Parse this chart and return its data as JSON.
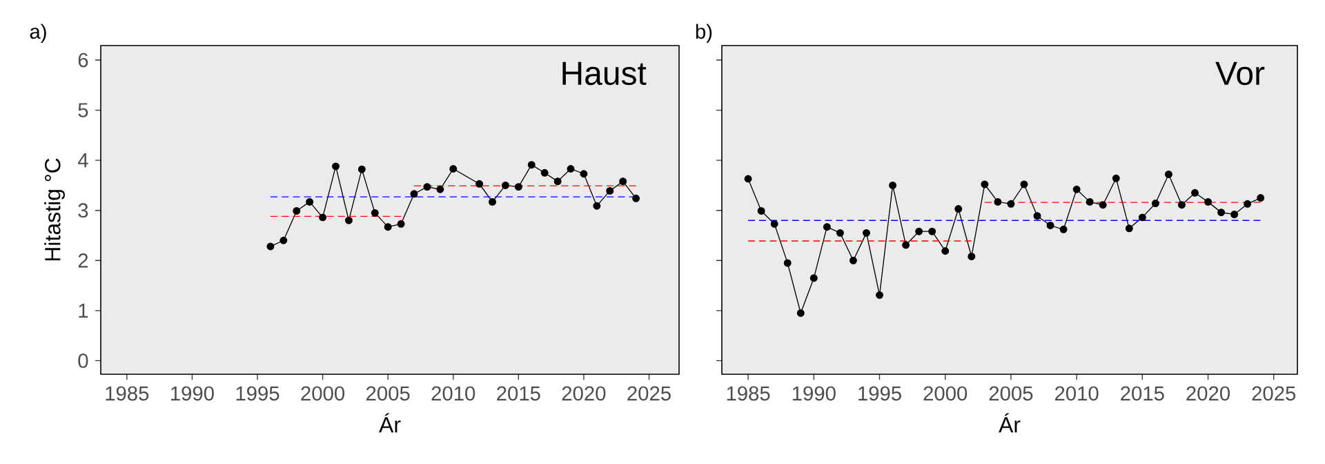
{
  "chart_data": [
    {
      "type": "line",
      "title": "Haust",
      "xlabel": "Ár",
      "ylabel": "Hitastig °C",
      "annotations": [
        "a)"
      ],
      "xlim": [
        1983,
        2027.3
      ],
      "ylim": [
        -0.27,
        6.29
      ],
      "xticks": [
        1985,
        1990,
        1995,
        2000,
        2005,
        2010,
        2015,
        2020,
        2025
      ],
      "yticks": [
        0,
        1,
        2,
        3,
        4,
        5,
        6
      ],
      "marker": "circle",
      "grid": false,
      "series": [
        {
          "color": "#000000",
          "x": [
            1996,
            1997,
            1998,
            1999,
            2000,
            2001,
            2002,
            2003,
            2004,
            2005,
            2006,
            2007,
            2008,
            2009,
            2010,
            2012,
            2013,
            2014,
            2015,
            2016,
            2017,
            2018,
            2019,
            2020,
            2021,
            2022,
            2023,
            2024
          ],
          "values": [
            2.28,
            2.4,
            2.99,
            3.17,
            2.86,
            3.88,
            2.8,
            3.82,
            2.95,
            2.67,
            2.73,
            3.33,
            3.47,
            3.42,
            3.83,
            3.53,
            3.17,
            3.5,
            3.47,
            3.91,
            3.75,
            3.58,
            3.83,
            3.73,
            3.09,
            3.39,
            3.58,
            3.24
          ]
        },
        {
          "color": "#ff0000",
          "marker": "none",
          "line_style": "dashed",
          "x": [
            1996,
            2006
          ],
          "values": [
            2.88,
            2.88
          ]
        },
        {
          "color": "#ff0000",
          "marker": "none",
          "line_style": "dashed",
          "x": [
            2007,
            2024
          ],
          "values": [
            3.49,
            3.49
          ]
        },
        {
          "color": "#0000ff",
          "marker": "none",
          "line_style": "dashed",
          "x": [
            1996,
            2024
          ],
          "values": [
            3.27,
            3.27
          ]
        }
      ]
    },
    {
      "type": "line",
      "title": "Vor",
      "xlabel": "Ár",
      "annotations": [
        "b)"
      ],
      "xlim": [
        1983,
        2026.8
      ],
      "ylim": [
        -0.27,
        6.29
      ],
      "xticks": [
        1985,
        1990,
        1995,
        2000,
        2005,
        2010,
        2015,
        2020,
        2025
      ],
      "yticks": [
        0,
        1,
        2,
        3,
        4,
        5,
        6
      ],
      "tick_labels": "x",
      "marker": "circle",
      "grid": false,
      "series": [
        {
          "color": "#000000",
          "x": [
            1985,
            1986,
            1987,
            1988,
            1989,
            1990,
            1991,
            1992,
            1993,
            1994,
            1995,
            1996,
            1997,
            1998,
            1999,
            2000,
            2001,
            2002,
            2003,
            2004,
            2005,
            2006,
            2007,
            2008,
            2009,
            2010,
            2011,
            2012,
            2013,
            2014,
            2015,
            2016,
            2017,
            2018,
            2019,
            2020,
            2021,
            2022,
            2023,
            2024
          ],
          "values": [
            3.63,
            2.99,
            2.73,
            1.95,
            0.95,
            1.65,
            2.67,
            2.55,
            2.0,
            2.55,
            1.31,
            3.5,
            2.31,
            2.58,
            2.58,
            2.19,
            3.03,
            2.08,
            3.52,
            3.17,
            3.13,
            3.52,
            2.89,
            2.7,
            2.62,
            3.42,
            3.17,
            3.11,
            3.64,
            2.64,
            2.86,
            3.14,
            3.72,
            3.11,
            3.35,
            3.17,
            2.96,
            2.92,
            3.13,
            3.25
          ]
        },
        {
          "color": "#ff0000",
          "marker": "none",
          "line_style": "dashed",
          "x": [
            1985,
            2002
          ],
          "values": [
            2.39,
            2.39
          ]
        },
        {
          "color": "#ff0000",
          "marker": "none",
          "line_style": "dashed",
          "x": [
            2003,
            2024
          ],
          "values": [
            3.16,
            3.16
          ]
        },
        {
          "color": "#0000ff",
          "marker": "none",
          "line_style": "dashed",
          "x": [
            1985,
            2024
          ],
          "values": [
            2.8,
            2.8
          ]
        }
      ]
    }
  ]
}
